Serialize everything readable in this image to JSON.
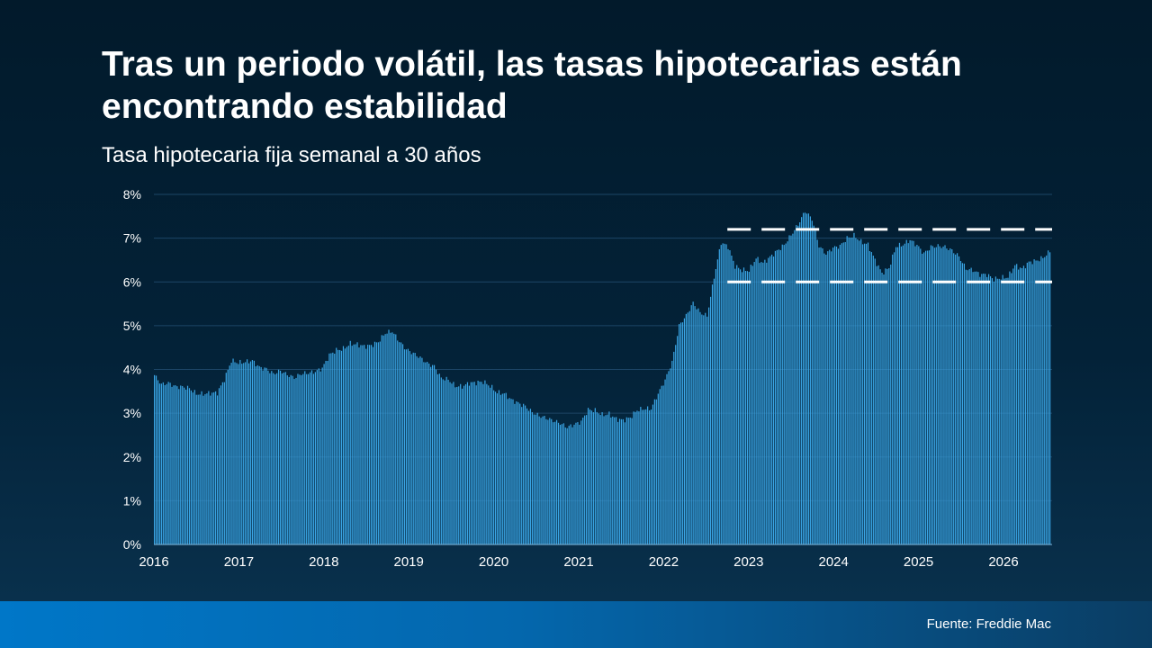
{
  "title": "Tras un periodo volátil, las tasas hipotecarias están encontrando estabilidad",
  "subtitle": "Tasa hipotecaria fija semanal a 30 años",
  "source": "Fuente: Freddie Mac",
  "colors": {
    "bar": "#3aa6e6",
    "grid": "#1c4566",
    "reference_line": "#ffffff"
  },
  "chart_data": {
    "type": "bar",
    "frequency": "weekly",
    "ylim": [
      0,
      8
    ],
    "y_ticks": [
      "0%",
      "1%",
      "2%",
      "3%",
      "4%",
      "5%",
      "6%",
      "7%",
      "8%"
    ],
    "x_ticks": [
      "2016",
      "2017",
      "2018",
      "2019",
      "2020",
      "2021",
      "2022",
      "2023",
      "2024",
      "2025",
      "2026"
    ],
    "grid": "horizontal",
    "reference_lines": [
      {
        "value": 7.2,
        "start": "2022-10",
        "style": "dashed"
      },
      {
        "value": 6.0,
        "start": "2022-10",
        "style": "dashed"
      }
    ],
    "series": [
      {
        "values_monthly": [
          3.87,
          3.66,
          3.69,
          3.61,
          3.6,
          3.57,
          3.44,
          3.44,
          3.46,
          3.47,
          3.77,
          4.2,
          4.15,
          4.17,
          4.2,
          4.05,
          4.01,
          3.9,
          3.97,
          3.88,
          3.81,
          3.9,
          3.92,
          3.95,
          4.03,
          4.33,
          4.44,
          4.47,
          4.59,
          4.57,
          4.53,
          4.55,
          4.63,
          4.83,
          4.87,
          4.64,
          4.46,
          4.37,
          4.27,
          4.14,
          4.07,
          3.8,
          3.77,
          3.62,
          3.61,
          3.69,
          3.7,
          3.72,
          3.62,
          3.47,
          3.45,
          3.31,
          3.23,
          3.16,
          3.02,
          2.94,
          2.89,
          2.83,
          2.77,
          2.68,
          2.74,
          2.81,
          3.08,
          3.06,
          2.96,
          2.98,
          2.87,
          2.84,
          2.9,
          3.07,
          3.1,
          3.1,
          3.45,
          3.76,
          4.17,
          5.0,
          5.23,
          5.52,
          5.3,
          5.22,
          6.11,
          6.9,
          6.81,
          6.36,
          6.27,
          6.26,
          6.54,
          6.43,
          6.57,
          6.71,
          6.84,
          7.07,
          7.31,
          7.62,
          7.44,
          6.82,
          6.64,
          6.78,
          6.82,
          7.0,
          7.06,
          6.92,
          6.85,
          6.5,
          6.2,
          6.32,
          6.81,
          6.85,
          6.96,
          6.84,
          6.65,
          6.8,
          6.82,
          6.8,
          6.72,
          6.58,
          6.3,
          6.27,
          6.17,
          6.17,
          6.06,
          6.09,
          6.11,
          6.38,
          6.3,
          6.45,
          6.48,
          6.55,
          6.7
        ]
      }
    ]
  }
}
